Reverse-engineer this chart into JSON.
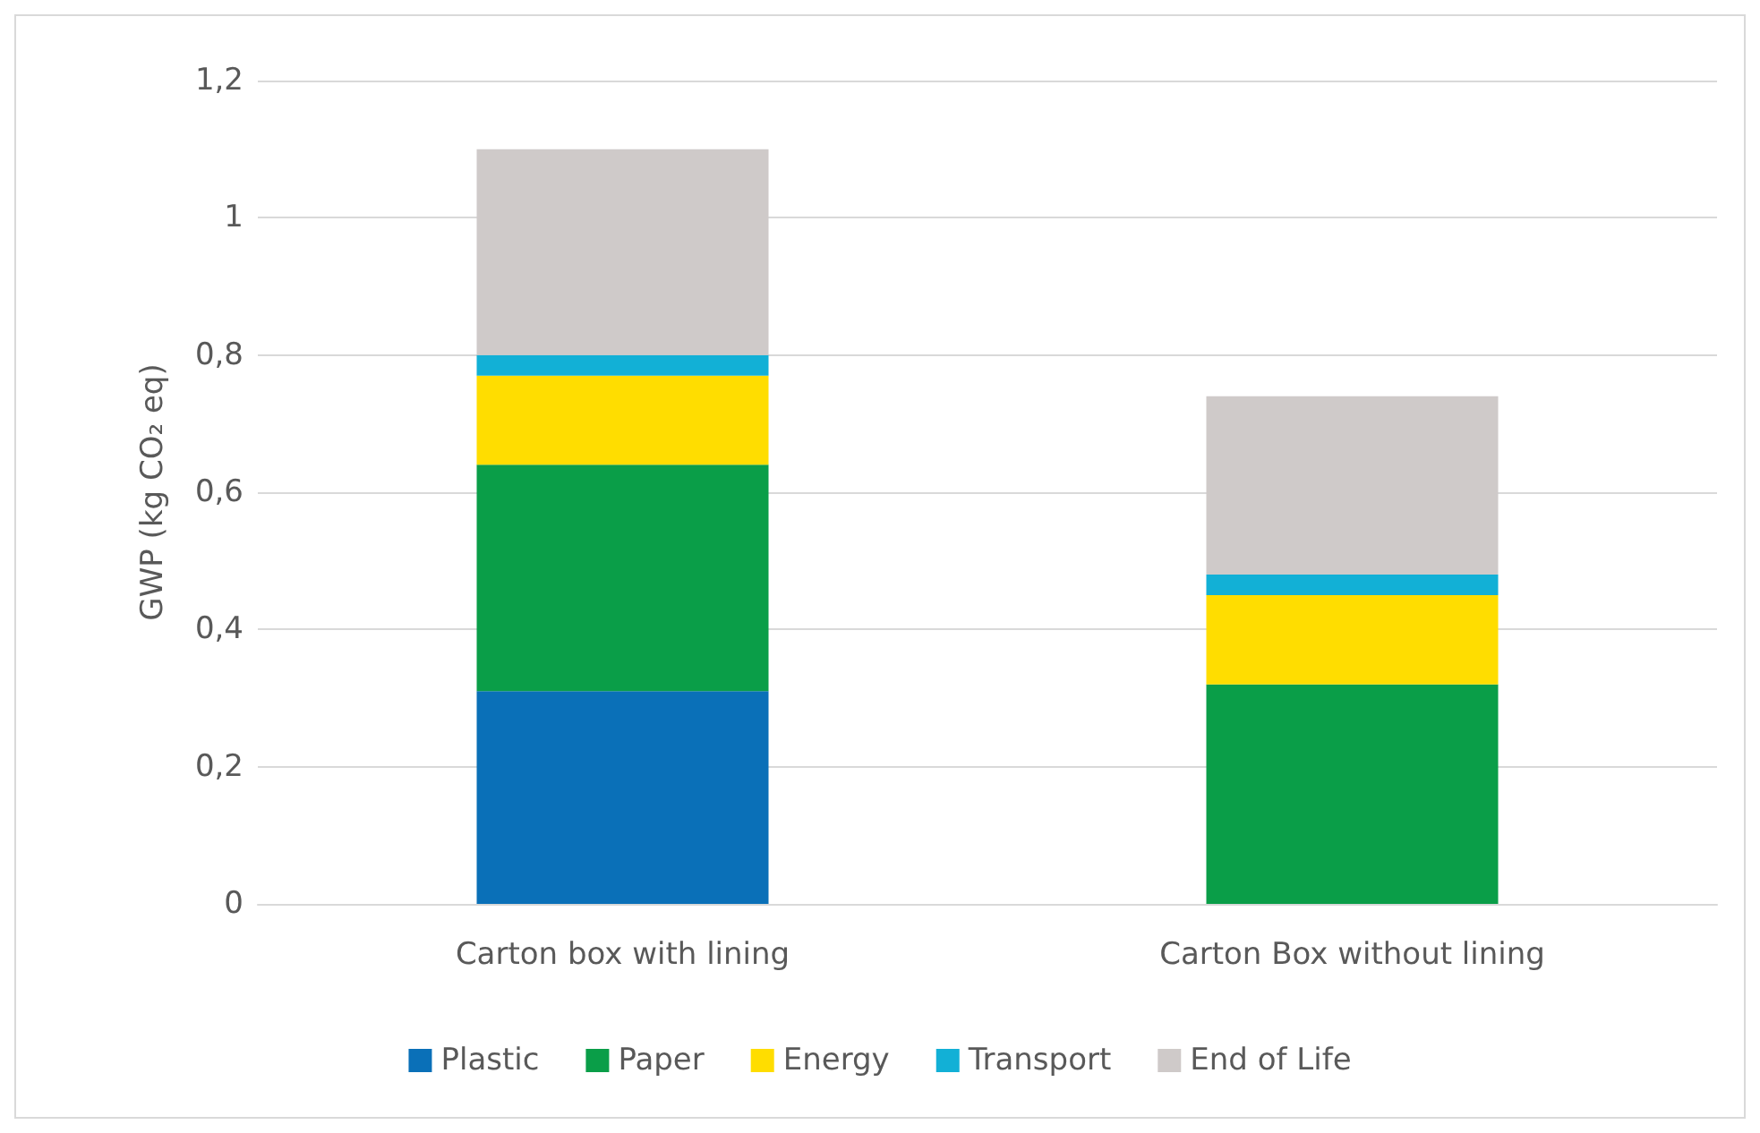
{
  "chart_data": {
    "type": "bar",
    "stacked": true,
    "ylabel": "GWP (kg CO₂ eq)",
    "categories": [
      "Carton box with lining",
      "Carton Box without lining"
    ],
    "series": [
      {
        "name": "Plastic",
        "color": "#0a70b8",
        "values": [
          0.31,
          0
        ]
      },
      {
        "name": "Paper",
        "color": "#0a9e48",
        "values": [
          0.33,
          0.32
        ]
      },
      {
        "name": "Energy",
        "color": "#ffdd00",
        "values": [
          0.13,
          0.13
        ]
      },
      {
        "name": "Transport",
        "color": "#12b0d6",
        "values": [
          0.03,
          0.03
        ]
      },
      {
        "name": "End of Life",
        "color": "#cfcac9",
        "values": [
          0.3,
          0.26
        ]
      }
    ],
    "ylim": [
      0,
      1.2
    ],
    "yticks": [
      0,
      {
        "value": 0.2,
        "label": "0,2"
      },
      {
        "value": 0.4,
        "label": "0,4"
      },
      {
        "value": 0.6,
        "label": "0,6"
      },
      {
        "value": 0.8,
        "label": "0,8"
      },
      1,
      {
        "value": 1.2,
        "label": "1,2"
      }
    ],
    "grid": "y",
    "legend": "bottom"
  }
}
